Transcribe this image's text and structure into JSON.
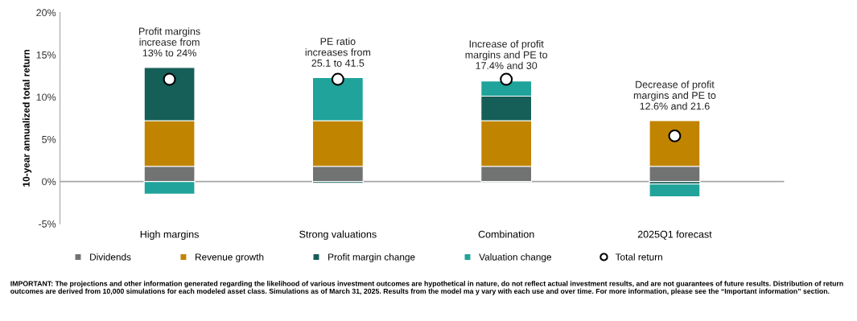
{
  "chart_data": {
    "type": "bar",
    "stacked": true,
    "ylabel": "10-year annualized total return",
    "categories": [
      "High margins",
      "Strong valuations",
      "Combination",
      "2025Q1 forecast"
    ],
    "series": [
      {
        "name": "Dividends",
        "color": "#707372",
        "values": [
          1.8,
          1.8,
          1.8,
          1.8
        ]
      },
      {
        "name": "Revenue growth",
        "color": "#c08400",
        "values": [
          5.4,
          5.4,
          5.4,
          5.4
        ]
      },
      {
        "name": "Profit margin change",
        "color": "#165e58",
        "values": [
          6.3,
          -0.2,
          2.9,
          -0.3
        ]
      },
      {
        "name": "Valuation change",
        "color": "#1fa39a",
        "values": [
          -1.5,
          5.1,
          1.8,
          -1.5
        ]
      },
      {
        "name": "Total return",
        "type": "scatter",
        "color": "#ffffff",
        "x": [
          "High margins",
          "Strong valuations",
          "Combination",
          "2025Q1 forecast"
        ],
        "values": [
          12.1,
          12.1,
          12.1,
          5.4
        ]
      }
    ],
    "ylim": [
      -5,
      20
    ],
    "yticks": [
      {
        "value": -5,
        "label": "-5%"
      },
      {
        "value": 0,
        "label": "0%"
      },
      {
        "value": 5,
        "label": "5%"
      },
      {
        "value": 10,
        "label": "10%"
      },
      {
        "value": 15,
        "label": "15%"
      },
      {
        "value": 20,
        "label": "20%"
      }
    ],
    "ref_lines": [
      {
        "axis": "y",
        "value": 0,
        "color": "#a6a6a6"
      }
    ],
    "grid": false,
    "legend": "bottom",
    "marker": "circle",
    "annotations": [
      {
        "text": "Profit margins\nincrease from\n13% to 24%",
        "x": "High margins",
        "y": 13.5
      },
      {
        "text": "PE ratio\nincreases from\n25.1 to 41.5",
        "x": "Strong valuations",
        "y": 12.3
      },
      {
        "text": "Increase of profit\nmargins and PE to\n17.4% and 30",
        "x": "Combination",
        "y": 12.0
      },
      {
        "text": "Decrease of profit\nmargins and PE to\n12.6% and 21.6",
        "x": "2025Q1 forecast",
        "y": 7.2
      },
      "IMPORTANT: The projections and other information generated regarding the likelihood of various investment outcomes are hypothetical in nature, do not reflect actual investment results, and are not guarantees of future results. Distribution of return outcomes are derived from 10,000 simulations for each modeled asset class. Simulations as of March 31, 2025. Results from the model ma y vary with each use and over time. For more information, please see the “Important information” section."
    ]
  }
}
